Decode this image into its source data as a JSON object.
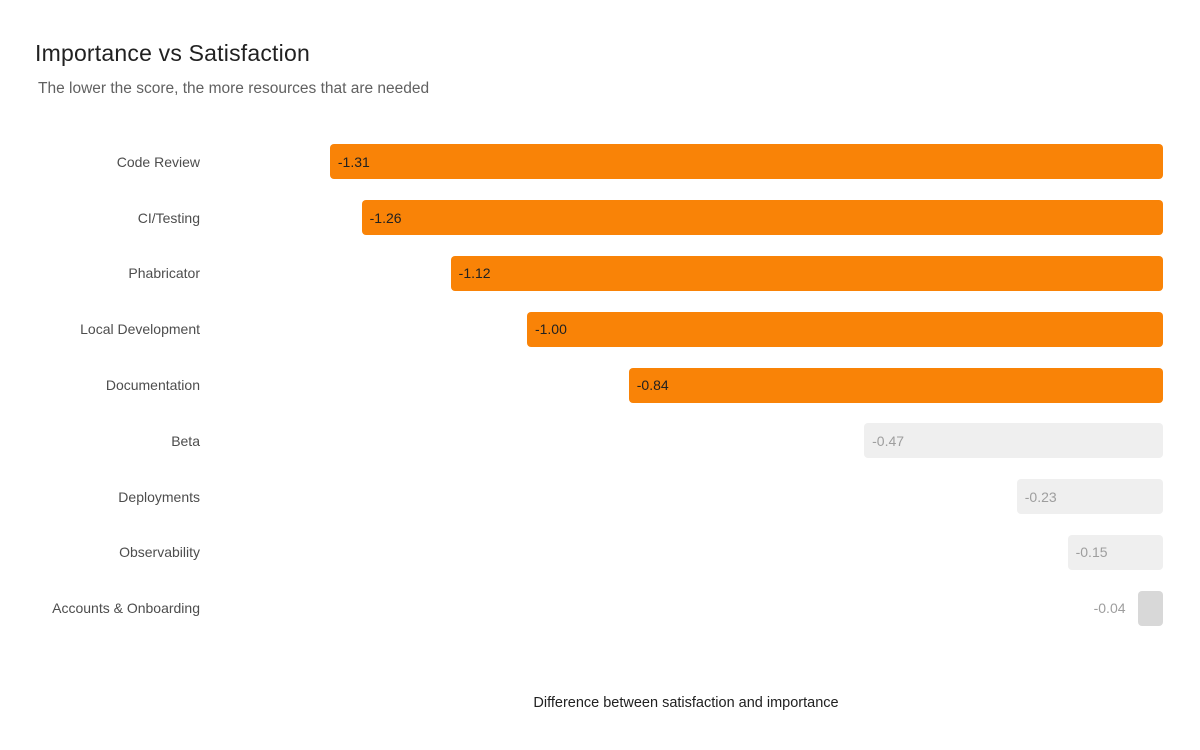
{
  "chart_data": {
    "type": "bar",
    "orientation": "horizontal",
    "title": "Importance vs Satisfaction",
    "subtitle": "The lower the score, the more resources that are needed",
    "xlabel": "Difference between satisfaction and importance",
    "ylabel": "",
    "xlim": [
      -1.5,
      0
    ],
    "grid": false,
    "legend": "none",
    "bars_right_aligned": true,
    "categories": [
      "Code Review",
      "CI/Testing",
      "Phabricator",
      "Local Development",
      "Documentation",
      "Beta",
      "Deployments",
      "Observability",
      "Accounts & Onboarding"
    ],
    "values": [
      -1.31,
      -1.26,
      -1.12,
      -1.0,
      -0.84,
      -0.47,
      -0.23,
      -0.15,
      -0.04
    ],
    "display_values": [
      "-1.31",
      "-1.26",
      "-1.12",
      "-1.00",
      "-0.84",
      "-0.47",
      "-0.23",
      "-0.15",
      "-0.04"
    ],
    "bar_colors": [
      "#f98307",
      "#f98307",
      "#f98307",
      "#f98307",
      "#f98307",
      "#efefef",
      "#efefef",
      "#efefef",
      "#d8d8d8"
    ],
    "value_label_colors": [
      "#212121",
      "#212121",
      "#212121",
      "#212121",
      "#212121",
      "#9e9e9e",
      "#9e9e9e",
      "#9e9e9e",
      "#9e9e9e"
    ],
    "value_label_placement": [
      "inside",
      "inside",
      "inside",
      "inside",
      "inside",
      "inside",
      "inside",
      "inside",
      "outside"
    ]
  },
  "palette": {
    "accent_orange": "#f98307",
    "neutral_light": "#efefef",
    "neutral_dark": "#d8d8d8",
    "title_text": "#212121",
    "subtitle_text": "#616161",
    "category_text": "#4d4d4d",
    "muted_value_text": "#9e9e9e",
    "background": "#ffffff"
  }
}
